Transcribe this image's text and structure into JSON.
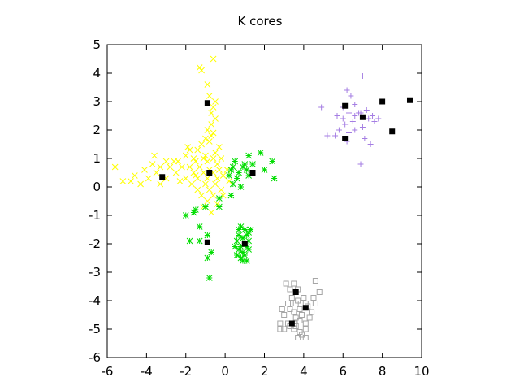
{
  "chart_data": {
    "type": "scatter",
    "title": "K cores",
    "xlabel": "",
    "ylabel": "",
    "xlim": [
      -6,
      10
    ],
    "ylim": [
      -6,
      5
    ],
    "xticks": [
      -6,
      -4,
      -2,
      0,
      2,
      4,
      6,
      8,
      10
    ],
    "yticks": [
      -6,
      -5,
      -4,
      -3,
      -2,
      -1,
      0,
      1,
      2,
      3,
      4,
      5
    ],
    "grid": false,
    "legend": "none",
    "series": [
      {
        "marker": "x",
        "color": "#ffff00",
        "points": [
          [
            -0.6,
            4.5
          ],
          [
            -1.3,
            4.2
          ],
          [
            -1.2,
            4.1
          ],
          [
            -0.9,
            3.6
          ],
          [
            -0.8,
            3.2
          ],
          [
            -0.5,
            3.0
          ],
          [
            -0.6,
            2.8
          ],
          [
            -0.7,
            2.6
          ],
          [
            -0.5,
            2.4
          ],
          [
            -0.7,
            2.2
          ],
          [
            -0.9,
            2.0
          ],
          [
            -0.6,
            1.9
          ],
          [
            -1.0,
            1.7
          ],
          [
            -0.8,
            1.6
          ],
          [
            -1.2,
            1.5
          ],
          [
            -1.8,
            1.3
          ],
          [
            -1.4,
            1.3
          ],
          [
            -0.5,
            1.2
          ],
          [
            -1.0,
            1.1
          ],
          [
            -2.0,
            1.1
          ],
          [
            -1.6,
            1.0
          ],
          [
            -1.1,
            1.0
          ],
          [
            -0.6,
            1.0
          ],
          [
            -0.2,
            1.0
          ],
          [
            -3.0,
            0.9
          ],
          [
            -2.4,
            0.9
          ],
          [
            -1.5,
            0.9
          ],
          [
            -0.9,
            0.9
          ],
          [
            -0.4,
            0.8
          ],
          [
            -3.7,
            0.8
          ],
          [
            -3.3,
            0.7
          ],
          [
            -2.8,
            0.7
          ],
          [
            -2.2,
            0.7
          ],
          [
            -1.8,
            0.7
          ],
          [
            -1.3,
            0.7
          ],
          [
            -0.8,
            0.6
          ],
          [
            -0.3,
            0.6
          ],
          [
            0.1,
            0.6
          ],
          [
            -4.1,
            0.6
          ],
          [
            -3.5,
            0.5
          ],
          [
            -2.5,
            0.5
          ],
          [
            -1.6,
            0.5
          ],
          [
            -1.1,
            0.5
          ],
          [
            -0.6,
            0.5
          ],
          [
            -0.1,
            0.4
          ],
          [
            -5.6,
            0.7
          ],
          [
            -4.6,
            0.4
          ],
          [
            -3.9,
            0.3
          ],
          [
            -3.0,
            0.3
          ],
          [
            -2.0,
            0.3
          ],
          [
            -1.4,
            0.3
          ],
          [
            -0.9,
            0.3
          ],
          [
            -0.4,
            0.3
          ],
          [
            0.2,
            0.2
          ],
          [
            -5.2,
            0.2
          ],
          [
            -4.8,
            0.2
          ],
          [
            -4.3,
            0.1
          ],
          [
            -3.3,
            0.1
          ],
          [
            -2.3,
            0.2
          ],
          [
            -1.7,
            0.1
          ],
          [
            -1.0,
            0.1
          ],
          [
            -0.5,
            0.1
          ],
          [
            -1.4,
            -0.1
          ],
          [
            -0.8,
            -0.1
          ],
          [
            -0.2,
            -0.1
          ],
          [
            -1.2,
            -0.3
          ],
          [
            -0.6,
            -0.3
          ],
          [
            -0.1,
            -0.3
          ],
          [
            -0.9,
            -0.5
          ],
          [
            -0.4,
            -0.6
          ],
          [
            -1.1,
            -0.7
          ],
          [
            -0.7,
            -0.9
          ],
          [
            -1.5,
            0.4
          ],
          [
            -2.6,
            0.9
          ],
          [
            -3.6,
            1.1
          ],
          [
            -0.3,
            1.4
          ],
          [
            -1.9,
            1.4
          ],
          [
            -0.7,
            1.8
          ]
        ]
      },
      {
        "marker": "asterisk",
        "color": "#00dd00",
        "points": [
          [
            1.8,
            1.2
          ],
          [
            1.2,
            1.1
          ],
          [
            0.5,
            0.9
          ],
          [
            1.0,
            0.8
          ],
          [
            2.4,
            0.9
          ],
          [
            0.4,
            0.7
          ],
          [
            0.9,
            0.7
          ],
          [
            1.4,
            0.8
          ],
          [
            0.3,
            0.6
          ],
          [
            0.7,
            0.5
          ],
          [
            1.1,
            0.6
          ],
          [
            2.0,
            0.6
          ],
          [
            0.2,
            0.4
          ],
          [
            0.6,
            0.3
          ],
          [
            1.2,
            0.4
          ],
          [
            2.5,
            0.3
          ],
          [
            0.4,
            0.1
          ],
          [
            0.8,
            0.0
          ],
          [
            0.3,
            -0.3
          ],
          [
            -0.3,
            -0.4
          ],
          [
            -1.0,
            -0.7
          ],
          [
            -1.5,
            -0.8
          ],
          [
            -1.6,
            -0.9
          ],
          [
            -2.0,
            -1.0
          ],
          [
            -0.3,
            -0.7
          ],
          [
            -1.3,
            -1.4
          ],
          [
            -0.9,
            -1.7
          ],
          [
            -1.3,
            -1.9
          ],
          [
            -1.8,
            -1.9
          ],
          [
            -0.7,
            -2.3
          ],
          [
            -0.9,
            -2.5
          ],
          [
            -0.8,
            -3.2
          ],
          [
            0.8,
            -1.4
          ],
          [
            1.0,
            -1.5
          ],
          [
            1.3,
            -1.5
          ],
          [
            0.7,
            -1.7
          ],
          [
            1.1,
            -1.7
          ],
          [
            0.9,
            -1.8
          ],
          [
            1.2,
            -1.9
          ],
          [
            0.6,
            -1.9
          ],
          [
            1.0,
            -2.0
          ],
          [
            0.8,
            -2.1
          ],
          [
            1.1,
            -2.1
          ],
          [
            0.7,
            -2.2
          ],
          [
            0.9,
            -2.3
          ],
          [
            1.2,
            -2.2
          ],
          [
            0.6,
            -2.4
          ],
          [
            1.0,
            -2.4
          ],
          [
            0.8,
            -2.5
          ],
          [
            1.1,
            -2.6
          ],
          [
            0.9,
            -2.6
          ],
          [
            0.7,
            -1.5
          ],
          [
            1.2,
            -1.6
          ],
          [
            0.5,
            -2.1
          ]
        ]
      },
      {
        "marker": "plus",
        "color": "#a57ee3",
        "points": [
          [
            7.0,
            3.9
          ],
          [
            6.2,
            3.4
          ],
          [
            6.4,
            3.2
          ],
          [
            4.9,
            2.8
          ],
          [
            6.0,
            2.8
          ],
          [
            6.6,
            2.9
          ],
          [
            7.2,
            2.7
          ],
          [
            5.7,
            2.5
          ],
          [
            6.3,
            2.6
          ],
          [
            6.6,
            2.5
          ],
          [
            6.0,
            2.4
          ],
          [
            6.8,
            2.6
          ],
          [
            7.5,
            2.5
          ],
          [
            7.6,
            2.3
          ],
          [
            7.3,
            2.4
          ],
          [
            6.5,
            2.3
          ],
          [
            6.1,
            2.2
          ],
          [
            7.0,
            2.1
          ],
          [
            5.8,
            2.0
          ],
          [
            6.6,
            2.0
          ],
          [
            6.3,
            1.9
          ],
          [
            5.6,
            1.8
          ],
          [
            5.2,
            1.8
          ],
          [
            6.2,
            1.6
          ],
          [
            7.1,
            1.7
          ],
          [
            7.4,
            1.5
          ],
          [
            6.9,
            0.8
          ],
          [
            6.9,
            2.6
          ],
          [
            7.8,
            2.4
          ]
        ]
      },
      {
        "marker": "square",
        "color": "#a6a6a6",
        "points": [
          [
            3.1,
            -3.4
          ],
          [
            3.5,
            -3.4
          ],
          [
            4.6,
            -3.3
          ],
          [
            3.3,
            -3.6
          ],
          [
            3.7,
            -3.6
          ],
          [
            4.8,
            -3.7
          ],
          [
            3.4,
            -3.9
          ],
          [
            4.0,
            -3.9
          ],
          [
            4.5,
            -3.9
          ],
          [
            3.7,
            -4.0
          ],
          [
            3.2,
            -4.1
          ],
          [
            3.6,
            -4.1
          ],
          [
            4.1,
            -4.1
          ],
          [
            4.6,
            -4.1
          ],
          [
            2.9,
            -4.3
          ],
          [
            3.3,
            -4.3
          ],
          [
            3.8,
            -4.3
          ],
          [
            4.4,
            -4.4
          ],
          [
            3.5,
            -4.4
          ],
          [
            3.9,
            -4.5
          ],
          [
            3.0,
            -4.5
          ],
          [
            3.6,
            -4.6
          ],
          [
            4.3,
            -4.6
          ],
          [
            3.8,
            -4.7
          ],
          [
            3.2,
            -4.8
          ],
          [
            3.5,
            -4.8
          ],
          [
            4.1,
            -4.8
          ],
          [
            2.8,
            -4.8
          ],
          [
            3.6,
            -4.9
          ],
          [
            3.0,
            -5.0
          ],
          [
            3.5,
            -5.0
          ],
          [
            4.1,
            -5.0
          ],
          [
            2.8,
            -5.0
          ],
          [
            3.8,
            -5.1
          ],
          [
            3.9,
            -5.2
          ],
          [
            4.1,
            -5.3
          ],
          [
            3.7,
            -5.3
          ],
          [
            3.3,
            -4.9
          ],
          [
            4.2,
            -4.2
          ]
        ]
      },
      {
        "marker": "filled-square",
        "color": "#000000",
        "points": [
          [
            -0.9,
            2.95
          ],
          [
            -3.2,
            0.35
          ],
          [
            -0.8,
            0.5
          ],
          [
            1.4,
            0.5
          ],
          [
            -0.9,
            -1.95
          ],
          [
            1.0,
            -2.0
          ],
          [
            6.1,
            2.85
          ],
          [
            7.0,
            2.45
          ],
          [
            8.0,
            3.0
          ],
          [
            9.4,
            3.05
          ],
          [
            8.5,
            1.95
          ],
          [
            6.1,
            1.7
          ],
          [
            3.6,
            -3.7
          ],
          [
            4.1,
            -4.25
          ],
          [
            3.4,
            -4.8
          ]
        ]
      }
    ]
  }
}
